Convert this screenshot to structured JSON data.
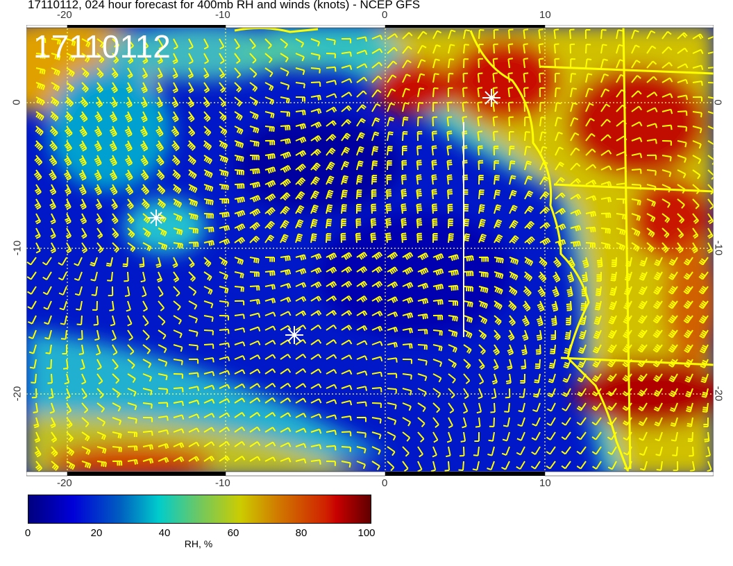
{
  "title": "17110112, 024 hour forecast for 400mb RH and winds (knots) - NCEP GFS",
  "date_stamp": "17110112",
  "x_ticks": [
    "-20",
    "-10",
    "0",
    "10"
  ],
  "y_ticks": [
    "0",
    "-10",
    "-20"
  ],
  "colorbar": {
    "label": "RH, %",
    "ticks": [
      "0",
      "20",
      "40",
      "60",
      "80",
      "100"
    ],
    "range": [
      0,
      100
    ],
    "colormap": "jet"
  },
  "colors": {
    "barbs": "#ffff00",
    "coastline": "#ffff00",
    "markers": "#ffffff"
  },
  "icons": [
    "star-marker-icon",
    "wind-barb-icon"
  ]
}
